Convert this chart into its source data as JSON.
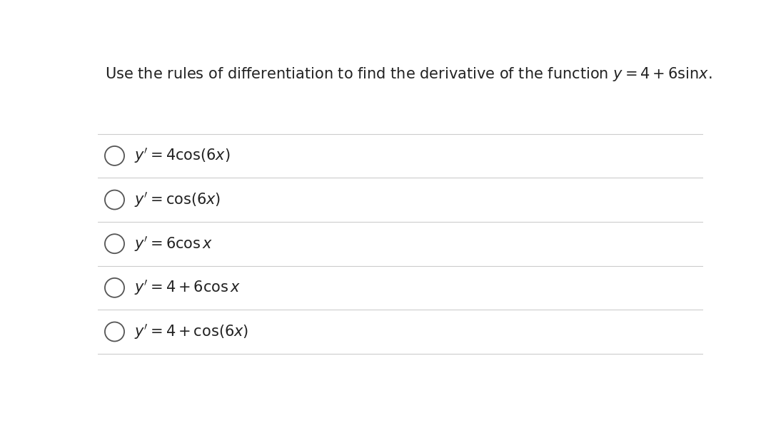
{
  "background_color": "#ffffff",
  "question_plain": "Use the rules of differentiation to find the derivative of the function ",
  "question_math": "$y = 4+6\\mathrm{sin}x$.",
  "question_fontsize": 15,
  "options": [
    "$y' = 4\\cos(6x)$",
    "$y' = \\cos(6x)$",
    "$y' = 6\\cos x$",
    "$y' = 4 + 6\\cos x$",
    "$y' = 4 + \\cos(6x)$"
  ],
  "option_fontsize": 15,
  "text_color": "#222222",
  "line_color": "#cccccc",
  "circle_color": "#555555",
  "fig_width": 10.94,
  "fig_height": 5.93
}
